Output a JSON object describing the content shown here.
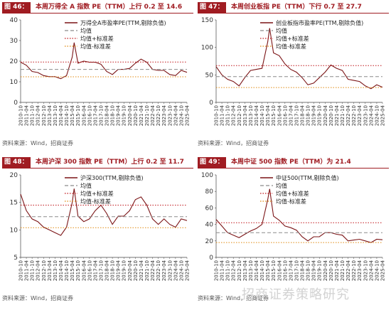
{
  "source_text": "资料来源：Wind，招商证券",
  "watermark": "招商证券策略研究",
  "colors": {
    "series": "#7b1416",
    "mean": "#8c8c8c",
    "plus": "#c0161b",
    "minus": "#e08a10",
    "badge": "#a01c22"
  },
  "x_tick_labels": [
    "2010-10",
    "2011-04",
    "2011-10",
    "2012-04",
    "2012-10",
    "2013-04",
    "2013-10",
    "2014-04",
    "2014-10",
    "2015-04",
    "2015-10",
    "2016-04",
    "2016-10",
    "2017-04",
    "2017-10",
    "2018-04",
    "2018-10",
    "2019-04",
    "2019-10",
    "2020-04",
    "2020-10",
    "2021-04",
    "2021-10",
    "2022-04",
    "2022-10",
    "2023-04",
    "2023-10",
    "2024-04",
    "2024-10",
    "2025-04"
  ],
  "panels": [
    {
      "fig_label": "图 46：",
      "title": "本周万得全 A 指数 PE（TTM）上行 0.2 至 14.6",
      "chart_data": {
        "type": "line",
        "ylim": [
          0,
          40
        ],
        "yticks": [
          0,
          10,
          20,
          30,
          40
        ],
        "x": [
          "2010-10",
          "2011-04",
          "2011-10",
          "2012-04",
          "2012-10",
          "2013-04",
          "2013-10",
          "2014-04",
          "2014-10",
          "2015-04",
          "2015-06",
          "2015-10",
          "2016-04",
          "2016-10",
          "2017-04",
          "2017-10",
          "2018-04",
          "2018-10",
          "2019-04",
          "2019-10",
          "2020-04",
          "2020-10",
          "2021-04",
          "2021-10",
          "2022-04",
          "2022-10",
          "2023-04",
          "2023-10",
          "2024-04",
          "2024-10",
          "2025-04"
        ],
        "series": [
          {
            "name": "万得全A市盈率PE(TTM,剔除负值)",
            "values": [
              19.5,
              18,
              15,
              14.5,
              13,
              12.5,
              12.5,
              11.5,
              13,
              22,
              29,
              19,
              20,
              19.5,
              19.5,
              18.5,
              15,
              13.5,
              16,
              16,
              16.5,
              19,
              21,
              19.5,
              16,
              15.5,
              15.5,
              13.5,
              13,
              15.5,
              14.6
            ]
          },
          {
            "name": "均值",
            "values": [
              16,
              16,
              16,
              16,
              16,
              16,
              16,
              16,
              16,
              16,
              16,
              16,
              16,
              16,
              16,
              16,
              16,
              16,
              16,
              16,
              16,
              16,
              16,
              16,
              16,
              16,
              16,
              16,
              16,
              16,
              16
            ]
          },
          {
            "name": "均值+标准差",
            "values": [
              19.6,
              19.6,
              19.6,
              19.6,
              19.6,
              19.6,
              19.6,
              19.6,
              19.6,
              19.6,
              19.6,
              19.6,
              19.6,
              19.6,
              19.6,
              19.6,
              19.6,
              19.6,
              19.6,
              19.6,
              19.6,
              19.6,
              19.6,
              19.6,
              19.6,
              19.6,
              19.6,
              19.6,
              19.6,
              19.6,
              19.6
            ]
          },
          {
            "name": "均值-标准差",
            "values": [
              12.4,
              12.4,
              12.4,
              12.4,
              12.4,
              12.4,
              12.4,
              12.4,
              12.4,
              12.4,
              12.4,
              12.4,
              12.4,
              12.4,
              12.4,
              12.4,
              12.4,
              12.4,
              12.4,
              12.4,
              12.4,
              12.4,
              12.4,
              12.4,
              12.4,
              12.4,
              12.4,
              12.4,
              12.4,
              12.4,
              12.4
            ]
          }
        ]
      }
    },
    {
      "fig_label": "图 47：",
      "title": "本周创业板指 PE（TTM）下行 0.7 至 27.7",
      "chart_data": {
        "type": "line",
        "ylim": [
          0,
          150
        ],
        "yticks": [
          0,
          50,
          100,
          150
        ],
        "x": [
          "2010-10",
          "2011-04",
          "2011-10",
          "2012-04",
          "2012-10",
          "2013-04",
          "2013-10",
          "2014-04",
          "2014-10",
          "2015-04",
          "2015-06",
          "2015-10",
          "2016-04",
          "2016-10",
          "2017-04",
          "2017-10",
          "2018-04",
          "2018-10",
          "2019-04",
          "2019-10",
          "2020-04",
          "2020-10",
          "2021-04",
          "2021-10",
          "2022-04",
          "2022-10",
          "2023-04",
          "2023-10",
          "2024-04",
          "2024-10",
          "2025-04"
        ],
        "series": [
          {
            "name": "创业板指市盈率PE(TTM,剔除负值)",
            "values": [
              65,
              50,
              42,
              38,
              30,
              45,
              58,
              60,
              62,
              110,
              135,
              90,
              85,
              70,
              60,
              55,
              45,
              32,
              35,
              45,
              55,
              68,
              62,
              58,
              42,
              40,
              38,
              30,
              25,
              32,
              27.7
            ]
          },
          {
            "name": "均值",
            "values": [
              47,
              47,
              47,
              47,
              47,
              47,
              47,
              47,
              47,
              47,
              47,
              47,
              47,
              47,
              47,
              47,
              47,
              47,
              47,
              47,
              47,
              47,
              47,
              47,
              47,
              47,
              47,
              47,
              47,
              47,
              47
            ]
          },
          {
            "name": "均值+标准差",
            "values": [
              67,
              67,
              67,
              67,
              67,
              67,
              67,
              67,
              67,
              67,
              67,
              67,
              67,
              67,
              67,
              67,
              67,
              67,
              67,
              67,
              67,
              67,
              67,
              67,
              67,
              67,
              67,
              67,
              67,
              67,
              67
            ]
          },
          {
            "name": "均值-标准差",
            "values": [
              27,
              27,
              27,
              27,
              27,
              27,
              27,
              27,
              27,
              27,
              27,
              27,
              27,
              27,
              27,
              27,
              27,
              27,
              27,
              27,
              27,
              27,
              27,
              27,
              27,
              27,
              27,
              27,
              27,
              27,
              27
            ]
          }
        ]
      }
    },
    {
      "fig_label": "图 48：",
      "title": "本周沪深 300 指数 PE（TTM）上行 0.2 至 11.7",
      "chart_data": {
        "type": "line",
        "ylim": [
          5,
          20
        ],
        "yticks": [
          5,
          10,
          15,
          20
        ],
        "x": [
          "2010-10",
          "2011-04",
          "2011-10",
          "2012-04",
          "2012-10",
          "2013-04",
          "2013-10",
          "2014-04",
          "2014-10",
          "2015-04",
          "2015-06",
          "2015-10",
          "2016-04",
          "2016-10",
          "2017-04",
          "2017-10",
          "2018-04",
          "2018-10",
          "2019-04",
          "2019-10",
          "2020-04",
          "2020-10",
          "2021-04",
          "2021-10",
          "2022-04",
          "2022-10",
          "2023-04",
          "2023-10",
          "2024-04",
          "2024-10",
          "2025-04"
        ],
        "series": [
          {
            "name": "沪深300(TTM,剔除负值)",
            "values": [
              16.5,
              13.5,
              12,
              11.5,
              10.5,
              10,
              9.5,
              9,
              10.5,
              15,
              17.5,
              12.5,
              11.5,
              12,
              13.5,
              14.5,
              13,
              11,
              12.5,
              12.5,
              13.5,
              15.5,
              16,
              14.5,
              12,
              11,
              12,
              11,
              10.5,
              12,
              11.7
            ]
          },
          {
            "name": "均值",
            "values": [
              12.4,
              12.4,
              12.4,
              12.4,
              12.4,
              12.4,
              12.4,
              12.4,
              12.4,
              12.4,
              12.4,
              12.4,
              12.4,
              12.4,
              12.4,
              12.4,
              12.4,
              12.4,
              12.4,
              12.4,
              12.4,
              12.4,
              12.4,
              12.4,
              12.4,
              12.4,
              12.4,
              12.4,
              12.4,
              12.4,
              12.4
            ]
          },
          {
            "name": "均值+标准差",
            "values": [
              14.5,
              14.5,
              14.5,
              14.5,
              14.5,
              14.5,
              14.5,
              14.5,
              14.5,
              14.5,
              14.5,
              14.5,
              14.5,
              14.5,
              14.5,
              14.5,
              14.5,
              14.5,
              14.5,
              14.5,
              14.5,
              14.5,
              14.5,
              14.5,
              14.5,
              14.5,
              14.5,
              14.5,
              14.5,
              14.5,
              14.5
            ]
          },
          {
            "name": "均值-标准差",
            "values": [
              10.4,
              10.4,
              10.4,
              10.4,
              10.4,
              10.4,
              10.4,
              10.4,
              10.4,
              10.4,
              10.4,
              10.4,
              10.4,
              10.4,
              10.4,
              10.4,
              10.4,
              10.4,
              10.4,
              10.4,
              10.4,
              10.4,
              10.4,
              10.4,
              10.4,
              10.4,
              10.4,
              10.4,
              10.4,
              10.4,
              10.4
            ]
          }
        ]
      }
    },
    {
      "fig_label": "图 49：",
      "title": "本周中证 500 指数 PE（TTM）为 21.4",
      "chart_data": {
        "type": "line",
        "ylim": [
          0,
          100
        ],
        "yticks": [
          0,
          20,
          40,
          60,
          80,
          100
        ],
        "x": [
          "2010-10",
          "2011-04",
          "2011-10",
          "2012-04",
          "2012-10",
          "2013-04",
          "2013-10",
          "2014-04",
          "2014-10",
          "2015-04",
          "2015-06",
          "2015-10",
          "2016-04",
          "2016-10",
          "2017-04",
          "2017-10",
          "2018-04",
          "2018-10",
          "2019-04",
          "2019-10",
          "2020-04",
          "2020-10",
          "2021-04",
          "2021-10",
          "2022-04",
          "2022-10",
          "2023-04",
          "2023-10",
          "2024-04",
          "2024-10",
          "2025-04"
        ],
        "series": [
          {
            "name": "中证500(TTM,剔除负值)",
            "values": [
              46,
              38,
              30,
              27,
              24,
              28,
              32,
              35,
              40,
              70,
              83,
              50,
              45,
              38,
              36,
              33,
              25,
              20,
              25,
              25,
              30,
              30,
              28,
              27,
              20,
              21,
              22,
              20,
              18,
              22,
              21.4
            ]
          },
          {
            "name": "均值",
            "values": [
              30,
              30,
              30,
              30,
              30,
              30,
              30,
              30,
              30,
              30,
              30,
              30,
              30,
              30,
              30,
              30,
              30,
              30,
              30,
              30,
              30,
              30,
              30,
              30,
              30,
              30,
              30,
              30,
              30,
              30,
              30
            ]
          },
          {
            "name": "均值+标准差",
            "values": [
              42,
              42,
              42,
              42,
              42,
              42,
              42,
              42,
              42,
              42,
              42,
              42,
              42,
              42,
              42,
              42,
              42,
              42,
              42,
              42,
              42,
              42,
              42,
              42,
              42,
              42,
              42,
              42,
              42,
              42,
              42
            ]
          },
          {
            "name": "均值-标准差",
            "values": [
              18,
              18,
              18,
              18,
              18,
              18,
              18,
              18,
              18,
              18,
              18,
              18,
              18,
              18,
              18,
              18,
              18,
              18,
              18,
              18,
              18,
              18,
              18,
              18,
              18,
              18,
              18,
              18,
              18,
              18,
              18
            ]
          }
        ]
      }
    }
  ]
}
